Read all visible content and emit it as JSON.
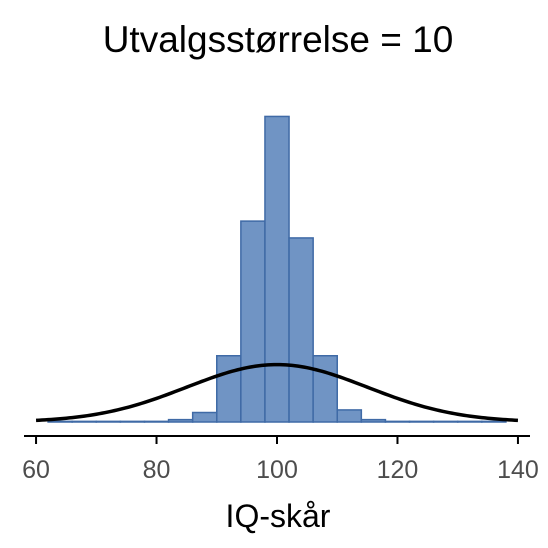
{
  "chart_data": {
    "type": "bar",
    "title": "Utvalgsstørrelse = 10",
    "xlabel": "IQ-skår",
    "ylabel": "",
    "xlim": [
      58,
      142
    ],
    "ylim": [
      0,
      0.152
    ],
    "x_ticks": [
      60,
      80,
      100,
      120,
      140
    ],
    "x_tick_labels": [
      "60",
      "80",
      "100",
      "120",
      "140"
    ],
    "grid": false,
    "bin_width": 4,
    "bins": [
      {
        "x0": 62,
        "x1": 66,
        "density": 0.0003
      },
      {
        "x0": 66,
        "x1": 70,
        "density": 0.0003
      },
      {
        "x0": 70,
        "x1": 74,
        "density": 0.0003
      },
      {
        "x0": 74,
        "x1": 78,
        "density": 0.0003
      },
      {
        "x0": 78,
        "x1": 82,
        "density": 0.0003
      },
      {
        "x0": 82,
        "x1": 86,
        "density": 0.0011
      },
      {
        "x0": 86,
        "x1": 90,
        "density": 0.0044
      },
      {
        "x0": 90,
        "x1": 94,
        "density": 0.0307
      },
      {
        "x0": 94,
        "x1": 98,
        "density": 0.0931
      },
      {
        "x0": 98,
        "x1": 102,
        "density": 0.1416
      },
      {
        "x0": 102,
        "x1": 106,
        "density": 0.0853
      },
      {
        "x0": 106,
        "x1": 110,
        "density": 0.0307
      },
      {
        "x0": 110,
        "x1": 114,
        "density": 0.0056
      },
      {
        "x0": 114,
        "x1": 118,
        "density": 0.0011
      },
      {
        "x0": 118,
        "x1": 122,
        "density": 0.0003
      },
      {
        "x0": 122,
        "x1": 126,
        "density": 0.0003
      },
      {
        "x0": 126,
        "x1": 130,
        "density": 0.0003
      },
      {
        "x0": 130,
        "x1": 134,
        "density": 0.0003
      },
      {
        "x0": 134,
        "x1": 138,
        "density": 0.0003
      }
    ],
    "curve": {
      "type": "normal",
      "mean": 100,
      "sd": 15
    },
    "colors": {
      "bar_fill": "#7094c4",
      "bar_stroke": "#3f6aa6",
      "curve": "#000000",
      "axis": "#000000",
      "text": "#000000",
      "tick_text": "#4d4d4d"
    }
  }
}
